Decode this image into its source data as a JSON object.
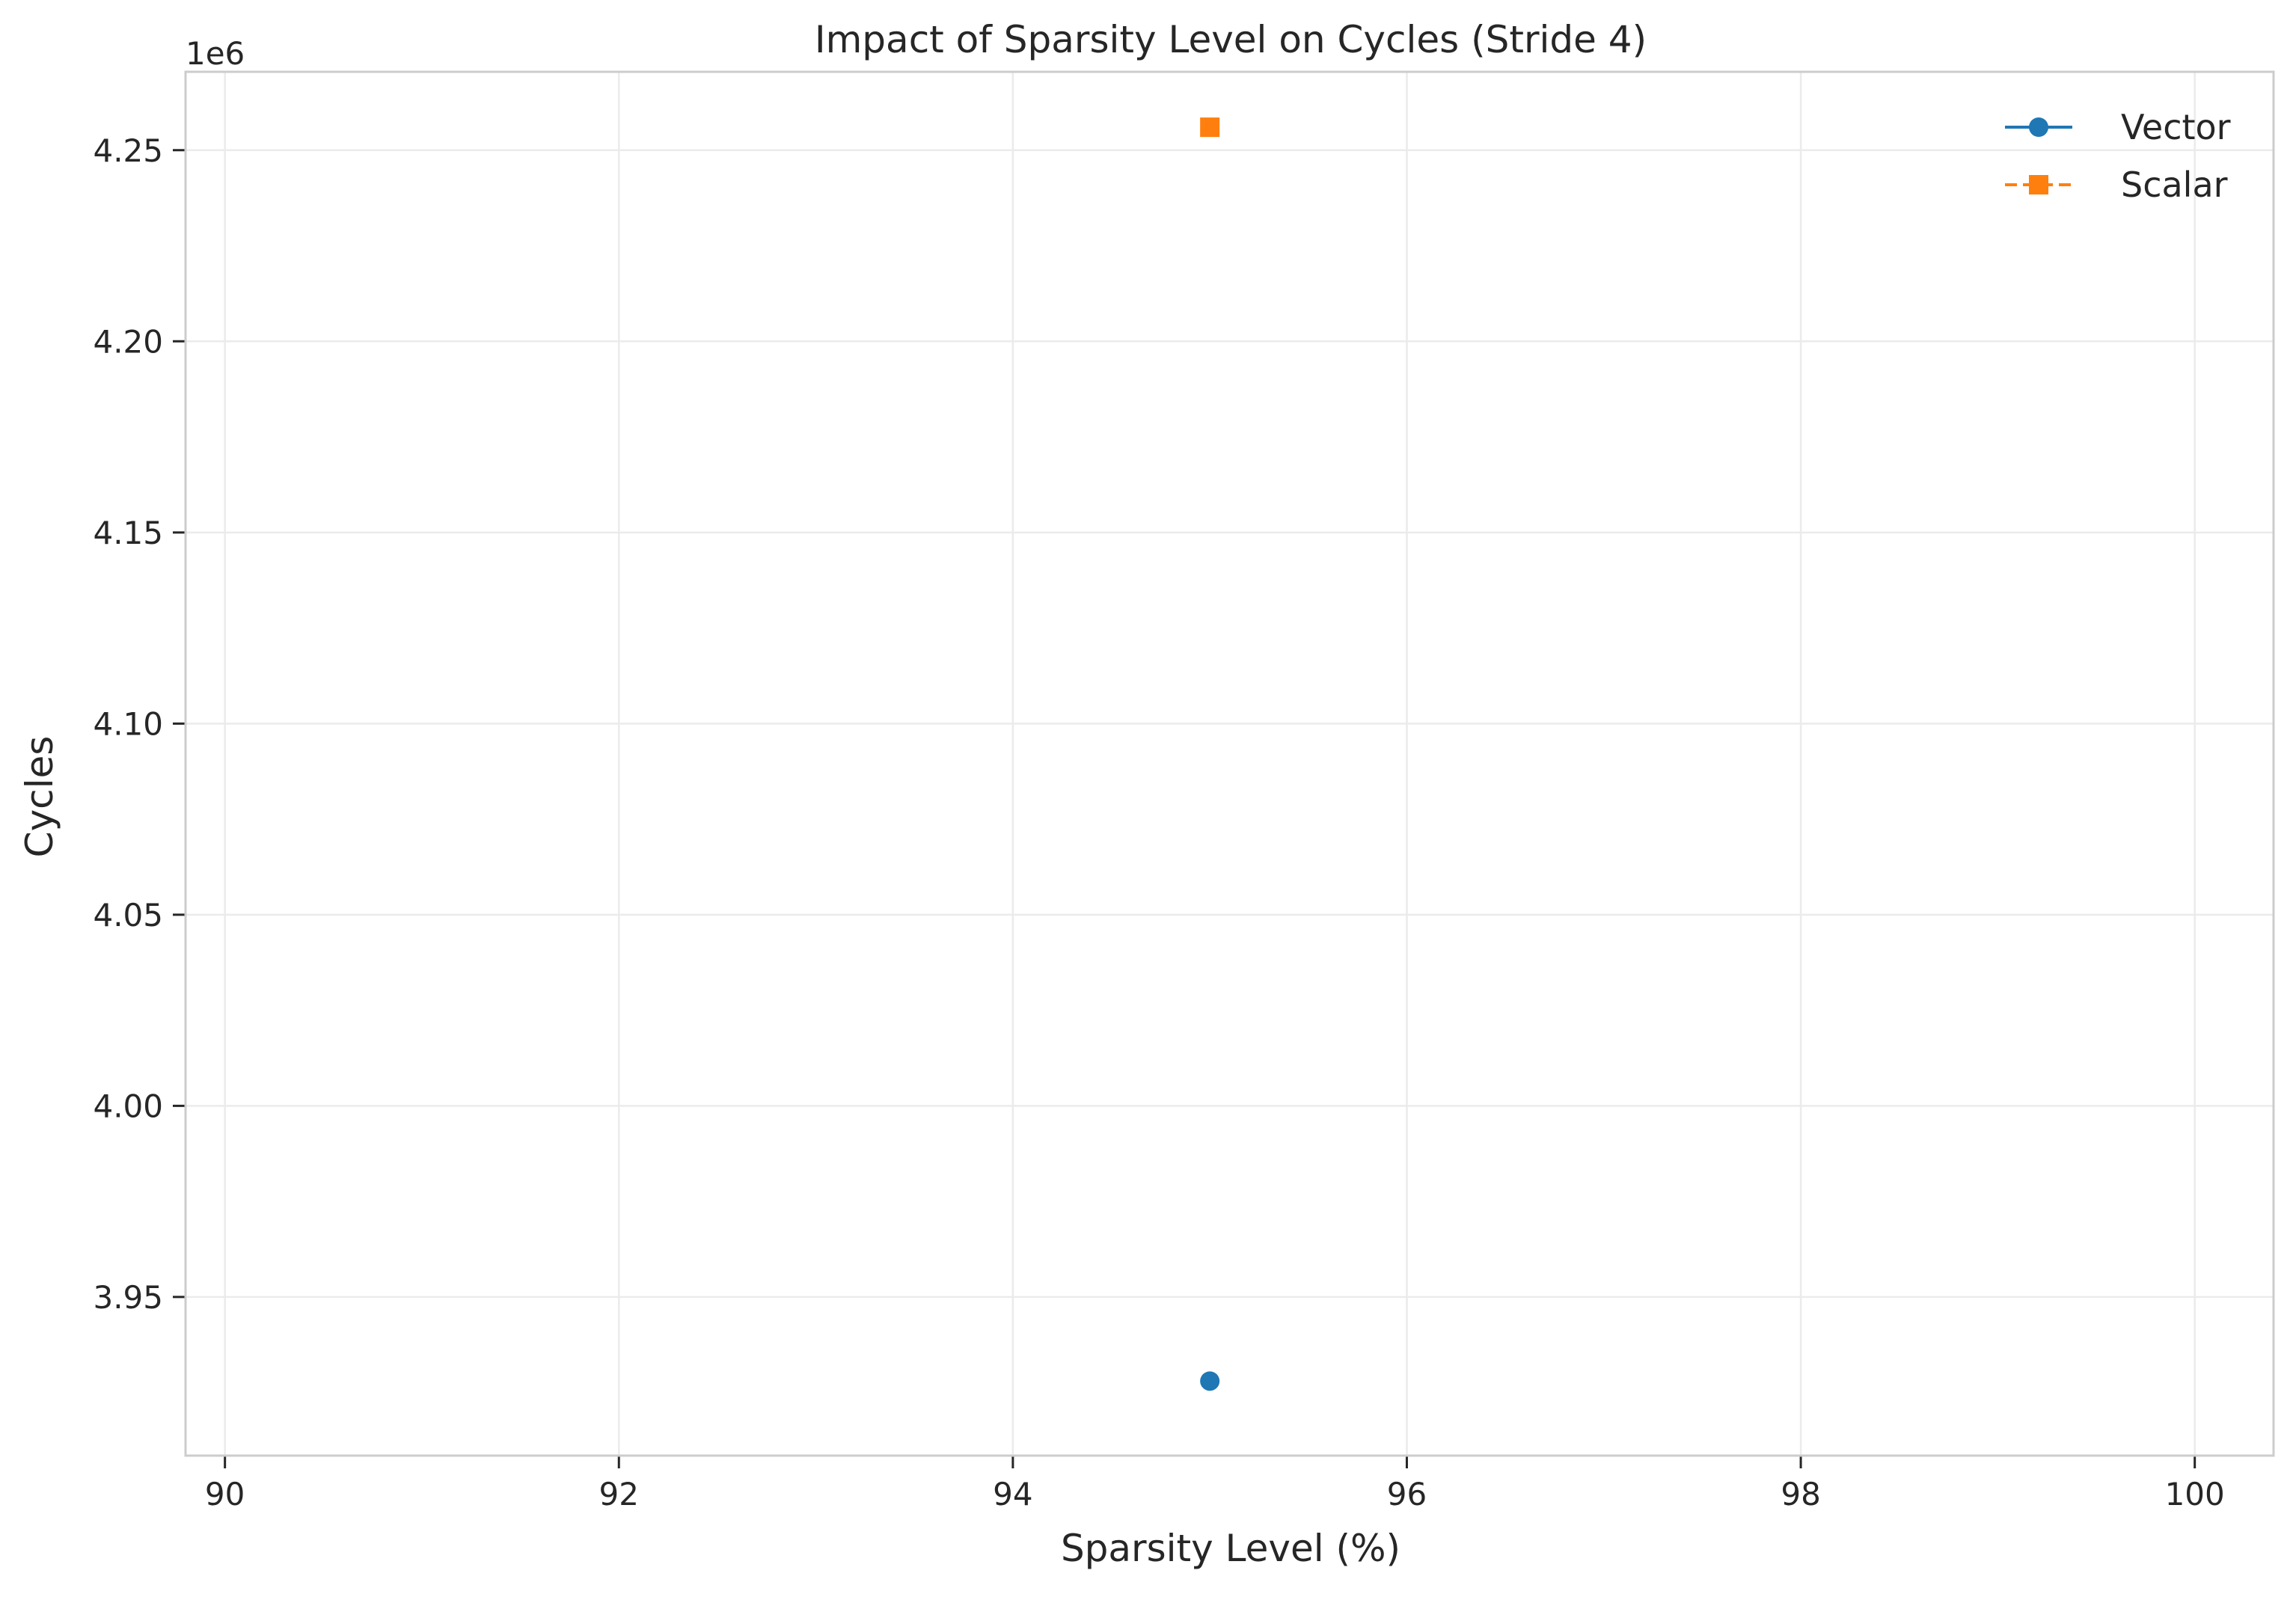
{
  "chart_data": {
    "type": "scatter",
    "title": "Impact of Sparsity Level on Cycles (Stride 4)",
    "xlabel": "Sparsity Level (%)",
    "ylabel": "Cycles",
    "y_offset_text": "1e6",
    "y_scale_factor": 1000000,
    "xlim": [
      89.8,
      100.4
    ],
    "ylim": [
      3.9085,
      4.2705
    ],
    "x_ticks": [
      90,
      92,
      94,
      96,
      98,
      100
    ],
    "x_tick_labels": [
      "90",
      "92",
      "94",
      "96",
      "98",
      "100"
    ],
    "y_ticks": [
      3.95,
      4.0,
      4.05,
      4.1,
      4.15,
      4.2,
      4.25
    ],
    "y_tick_labels": [
      "3.95",
      "4.00",
      "4.05",
      "4.10",
      "4.15",
      "4.20",
      "4.25"
    ],
    "grid": true,
    "legend_position": "top-right",
    "series": [
      {
        "name": "Vector",
        "marker": "circle",
        "line_style": "solid",
        "color": "#1f77b4",
        "x": [
          95
        ],
        "y": [
          3.928
        ]
      },
      {
        "name": "Scalar",
        "marker": "square",
        "line_style": "dashed",
        "color": "#ff7f0e",
        "x": [
          95
        ],
        "y": [
          4.256
        ]
      }
    ]
  }
}
